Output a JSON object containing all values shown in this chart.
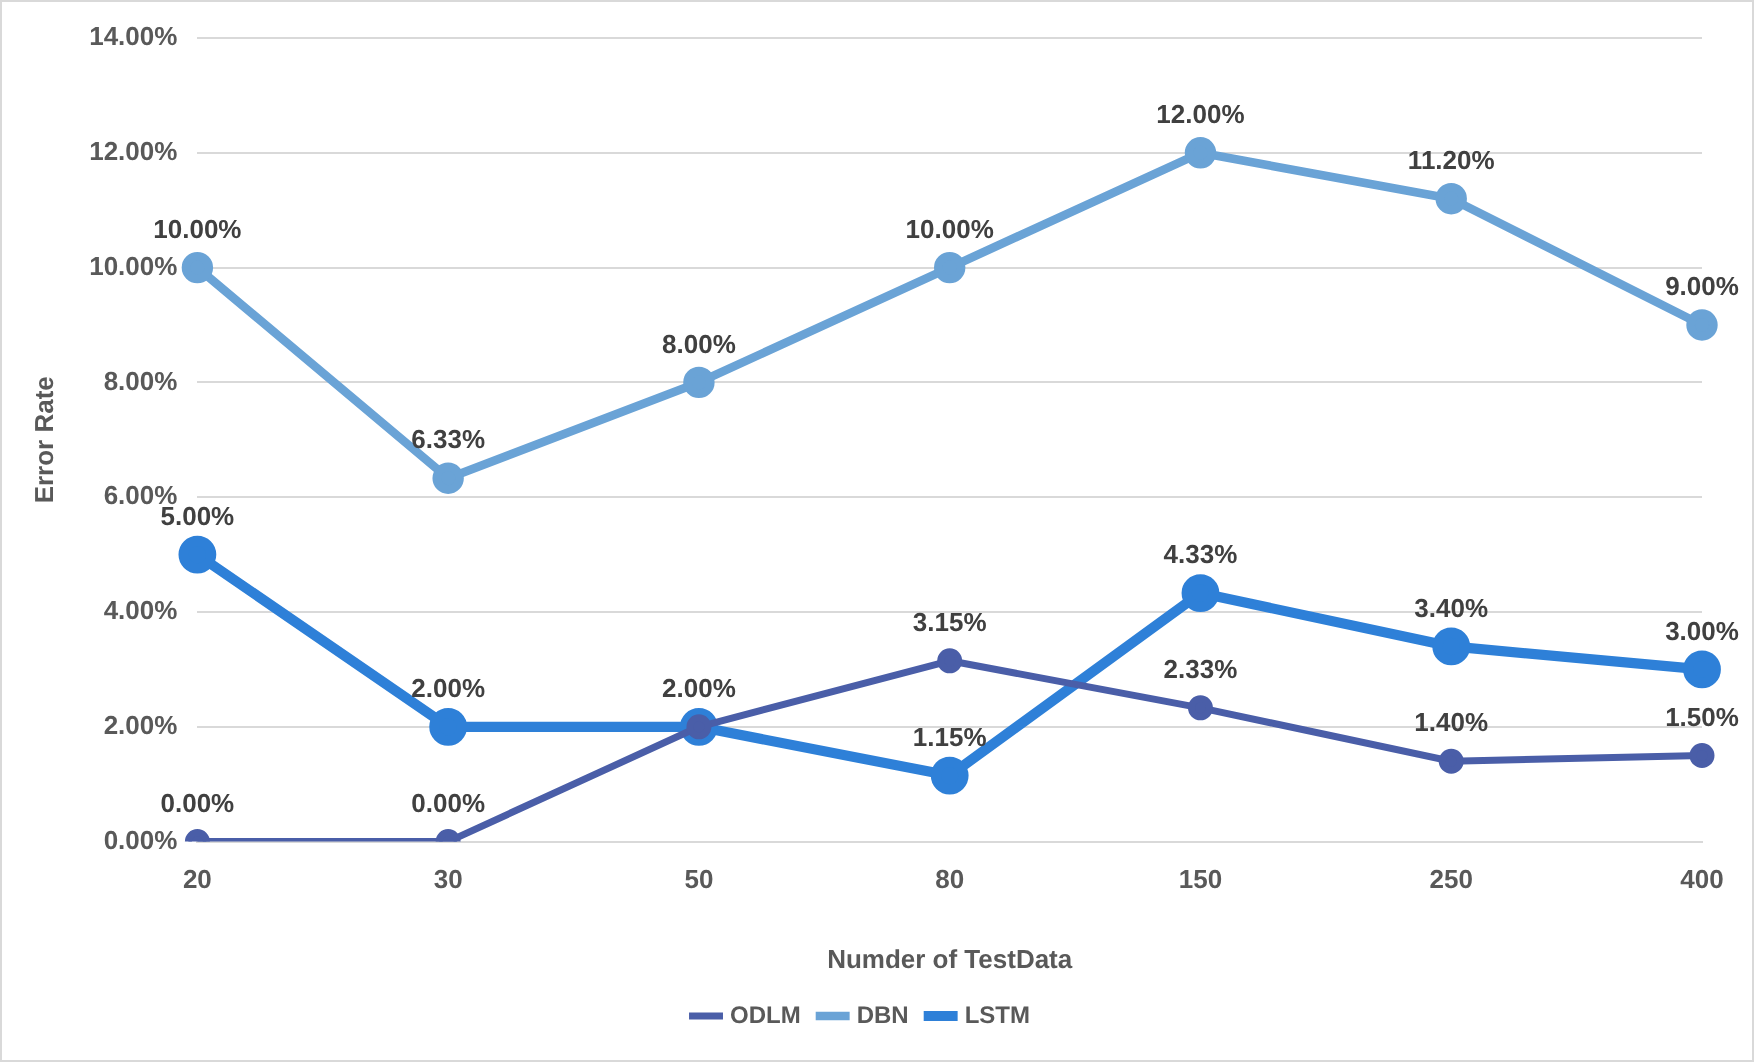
{
  "chart_data": {
    "type": "line",
    "xlabel": "Numder of TestData",
    "ylabel": "Error Rate",
    "categories": [
      "20",
      "30",
      "50",
      "80",
      "150",
      "250",
      "400"
    ],
    "series": [
      {
        "name": "ODLM",
        "color": "#4a5ea8",
        "values": [
          0,
          0,
          2,
          3.15,
          2.33,
          1.4,
          1.5
        ],
        "value_labels": [
          "0.00%",
          "0.00%",
          "2.00%",
          "3.15%",
          "2.33%",
          "1.40%",
          "1.50%"
        ]
      },
      {
        "name": "DBN",
        "color": "#6aa3d6",
        "values": [
          10,
          6.33,
          8,
          10,
          12,
          11.2,
          9
        ],
        "value_labels": [
          "10.00%",
          "6.33%",
          "8.00%",
          "10.00%",
          "12.00%",
          "11.20%",
          "9.00%"
        ]
      },
      {
        "name": "LSTM",
        "color": "#2e80d8",
        "values": [
          5,
          2,
          2,
          1.15,
          4.33,
          3.4,
          3
        ],
        "value_labels": [
          "5.00%",
          "2.00%",
          null,
          "1.15%",
          "4.33%",
          "3.40%",
          "3.00%"
        ]
      }
    ],
    "ylim": [
      0,
      14
    ],
    "yticks": [
      {
        "value": 0,
        "label": "0.00%"
      },
      {
        "value": 2,
        "label": "2.00%"
      },
      {
        "value": 4,
        "label": "4.00%"
      },
      {
        "value": 6,
        "label": "6.00%"
      },
      {
        "value": 8,
        "label": "8.00%"
      },
      {
        "value": 10,
        "label": "10.00%"
      },
      {
        "value": 12,
        "label": "12.00%"
      },
      {
        "value": 14,
        "label": "14.00%"
      }
    ],
    "grid": "y",
    "legend": "bottom",
    "marker": "circle",
    "line_style": "solid"
  }
}
